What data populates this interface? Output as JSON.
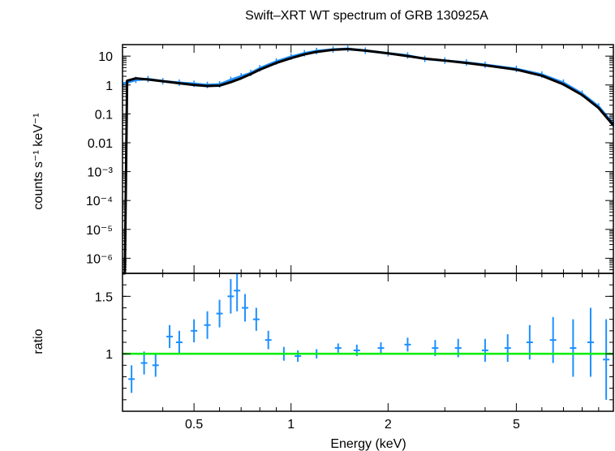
{
  "chart_data": [
    {
      "type": "scatter",
      "panel": "spectrum",
      "title": "Swift–XRT WT spectrum of GRB 130925A",
      "xlabel": "",
      "ylabel": "counts s⁻¹ keV⁻¹",
      "xscale": "log",
      "yscale": "log",
      "xlim": [
        0.3,
        10
      ],
      "ylim": [
        3e-07,
        25
      ],
      "y_ticks": [
        {
          "value": 10,
          "label": "10"
        },
        {
          "value": 1,
          "label": "1"
        },
        {
          "value": 0.1,
          "label": "0.1"
        },
        {
          "value": 0.01,
          "label": "0.01"
        },
        {
          "value": 0.001,
          "label": "10⁻³"
        },
        {
          "value": 0.0001,
          "label": "10⁻⁴"
        },
        {
          "value": 1e-05,
          "label": "10⁻⁵"
        },
        {
          "value": 1e-06,
          "label": "10⁻⁶"
        }
      ],
      "series": [
        {
          "name": "data",
          "color": "#1e90ff",
          "x": [
            0.3,
            0.33,
            0.36,
            0.4,
            0.45,
            0.5,
            0.55,
            0.6,
            0.65,
            0.7,
            0.75,
            0.8,
            0.9,
            1.0,
            1.1,
            1.2,
            1.35,
            1.5,
            1.7,
            2.0,
            2.3,
            2.6,
            3.0,
            3.5,
            4.0,
            5.0,
            6.0,
            7.0,
            8.0,
            9.0,
            10.0
          ],
          "y": [
            1.1,
            1.5,
            1.6,
            1.35,
            1.2,
            1.1,
            1.0,
            1.05,
            1.5,
            2.0,
            2.6,
            3.8,
            6.5,
            9.5,
            12.5,
            15.0,
            17.0,
            18.0,
            15.5,
            12.5,
            10.5,
            8.0,
            7.0,
            6.0,
            5.0,
            3.6,
            2.3,
            1.2,
            0.5,
            0.18,
            0.045
          ]
        },
        {
          "name": "model",
          "color": "#000000",
          "x": [
            0.3,
            0.305,
            0.31,
            0.33,
            0.36,
            0.4,
            0.45,
            0.5,
            0.55,
            0.6,
            0.65,
            0.7,
            0.75,
            0.8,
            0.9,
            1.0,
            1.1,
            1.2,
            1.35,
            1.5,
            1.7,
            2.0,
            2.3,
            2.6,
            3.0,
            3.5,
            4.0,
            5.0,
            6.0,
            7.0,
            8.0,
            9.0,
            10.0
          ],
          "y": [
            2e-07,
            2e-07,
            1.4,
            1.7,
            1.55,
            1.35,
            1.15,
            1.0,
            0.92,
            0.95,
            1.25,
            1.7,
            2.4,
            3.4,
            5.8,
            8.5,
            11.5,
            14.0,
            16.5,
            17.5,
            15.5,
            12.5,
            10.0,
            8.2,
            7.0,
            5.8,
            4.8,
            3.4,
            2.1,
            1.05,
            0.45,
            0.16,
            0.04
          ]
        }
      ]
    },
    {
      "type": "scatter",
      "panel": "ratio",
      "title": "",
      "xlabel": "Energy (keV)",
      "ylabel": "ratio",
      "xscale": "log",
      "yscale": "linear",
      "xlim": [
        0.3,
        10
      ],
      "ylim": [
        0.5,
        1.7
      ],
      "x_ticks": [
        {
          "value": 0.5,
          "label": "0.5"
        },
        {
          "value": 1,
          "label": "1"
        },
        {
          "value": 2,
          "label": "2"
        },
        {
          "value": 5,
          "label": "5"
        }
      ],
      "y_ticks": [
        {
          "value": 1.5,
          "label": "1.5"
        },
        {
          "value": 1,
          "label": "1"
        }
      ],
      "reference_line": {
        "y": 1,
        "color": "#00ee00"
      },
      "series": [
        {
          "name": "ratio",
          "color": "#1e90ff",
          "x": [
            0.32,
            0.35,
            0.38,
            0.42,
            0.45,
            0.5,
            0.55,
            0.6,
            0.65,
            0.68,
            0.72,
            0.78,
            0.85,
            0.95,
            1.05,
            1.2,
            1.4,
            1.6,
            1.9,
            2.3,
            2.8,
            3.3,
            4.0,
            4.7,
            5.5,
            6.5,
            7.5,
            8.5,
            9.5
          ],
          "y": [
            0.78,
            0.92,
            0.9,
            1.15,
            1.1,
            1.2,
            1.25,
            1.35,
            1.5,
            1.55,
            1.4,
            1.3,
            1.12,
            1.0,
            0.98,
            1.0,
            1.05,
            1.03,
            1.05,
            1.08,
            1.05,
            1.05,
            1.03,
            1.05,
            1.1,
            1.12,
            1.05,
            1.1,
            0.95
          ],
          "err": [
            0.12,
            0.1,
            0.1,
            0.1,
            0.1,
            0.1,
            0.12,
            0.12,
            0.15,
            0.18,
            0.12,
            0.1,
            0.08,
            0.06,
            0.05,
            0.04,
            0.04,
            0.05,
            0.05,
            0.06,
            0.07,
            0.08,
            0.1,
            0.12,
            0.15,
            0.2,
            0.25,
            0.3,
            0.35
          ]
        }
      ]
    }
  ]
}
